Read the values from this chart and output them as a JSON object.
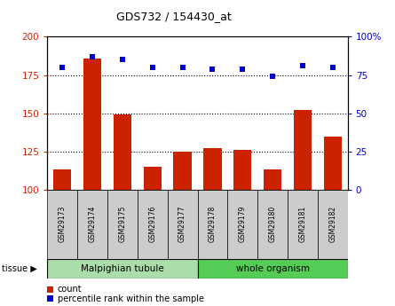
{
  "title": "GDS732 / 154430_at",
  "samples": [
    "GSM29173",
    "GSM29174",
    "GSM29175",
    "GSM29176",
    "GSM29177",
    "GSM29178",
    "GSM29179",
    "GSM29180",
    "GSM29181",
    "GSM29182"
  ],
  "count": [
    113,
    186,
    149,
    115,
    125,
    127,
    126,
    113,
    152,
    135
  ],
  "percentile": [
    80,
    87,
    85,
    80,
    80,
    79,
    79,
    74,
    81,
    80
  ],
  "ylim_left": [
    100,
    200
  ],
  "ylim_right": [
    0,
    100
  ],
  "yticks_left": [
    100,
    125,
    150,
    175,
    200
  ],
  "yticks_right": [
    0,
    25,
    50,
    75,
    100
  ],
  "bar_color": "#cc2200",
  "dot_color": "#0000cc",
  "tissue_groups": [
    {
      "label": "Malpighian tubule",
      "n": 5,
      "color": "#aaddaa"
    },
    {
      "label": "whole organism",
      "n": 5,
      "color": "#55cc55"
    }
  ],
  "tissue_label": "tissue",
  "legend_items": [
    {
      "label": "count",
      "color": "#cc2200"
    },
    {
      "label": "percentile rank within the sample",
      "color": "#0000cc"
    }
  ],
  "background_color": "#ffffff",
  "bar_width": 0.6
}
